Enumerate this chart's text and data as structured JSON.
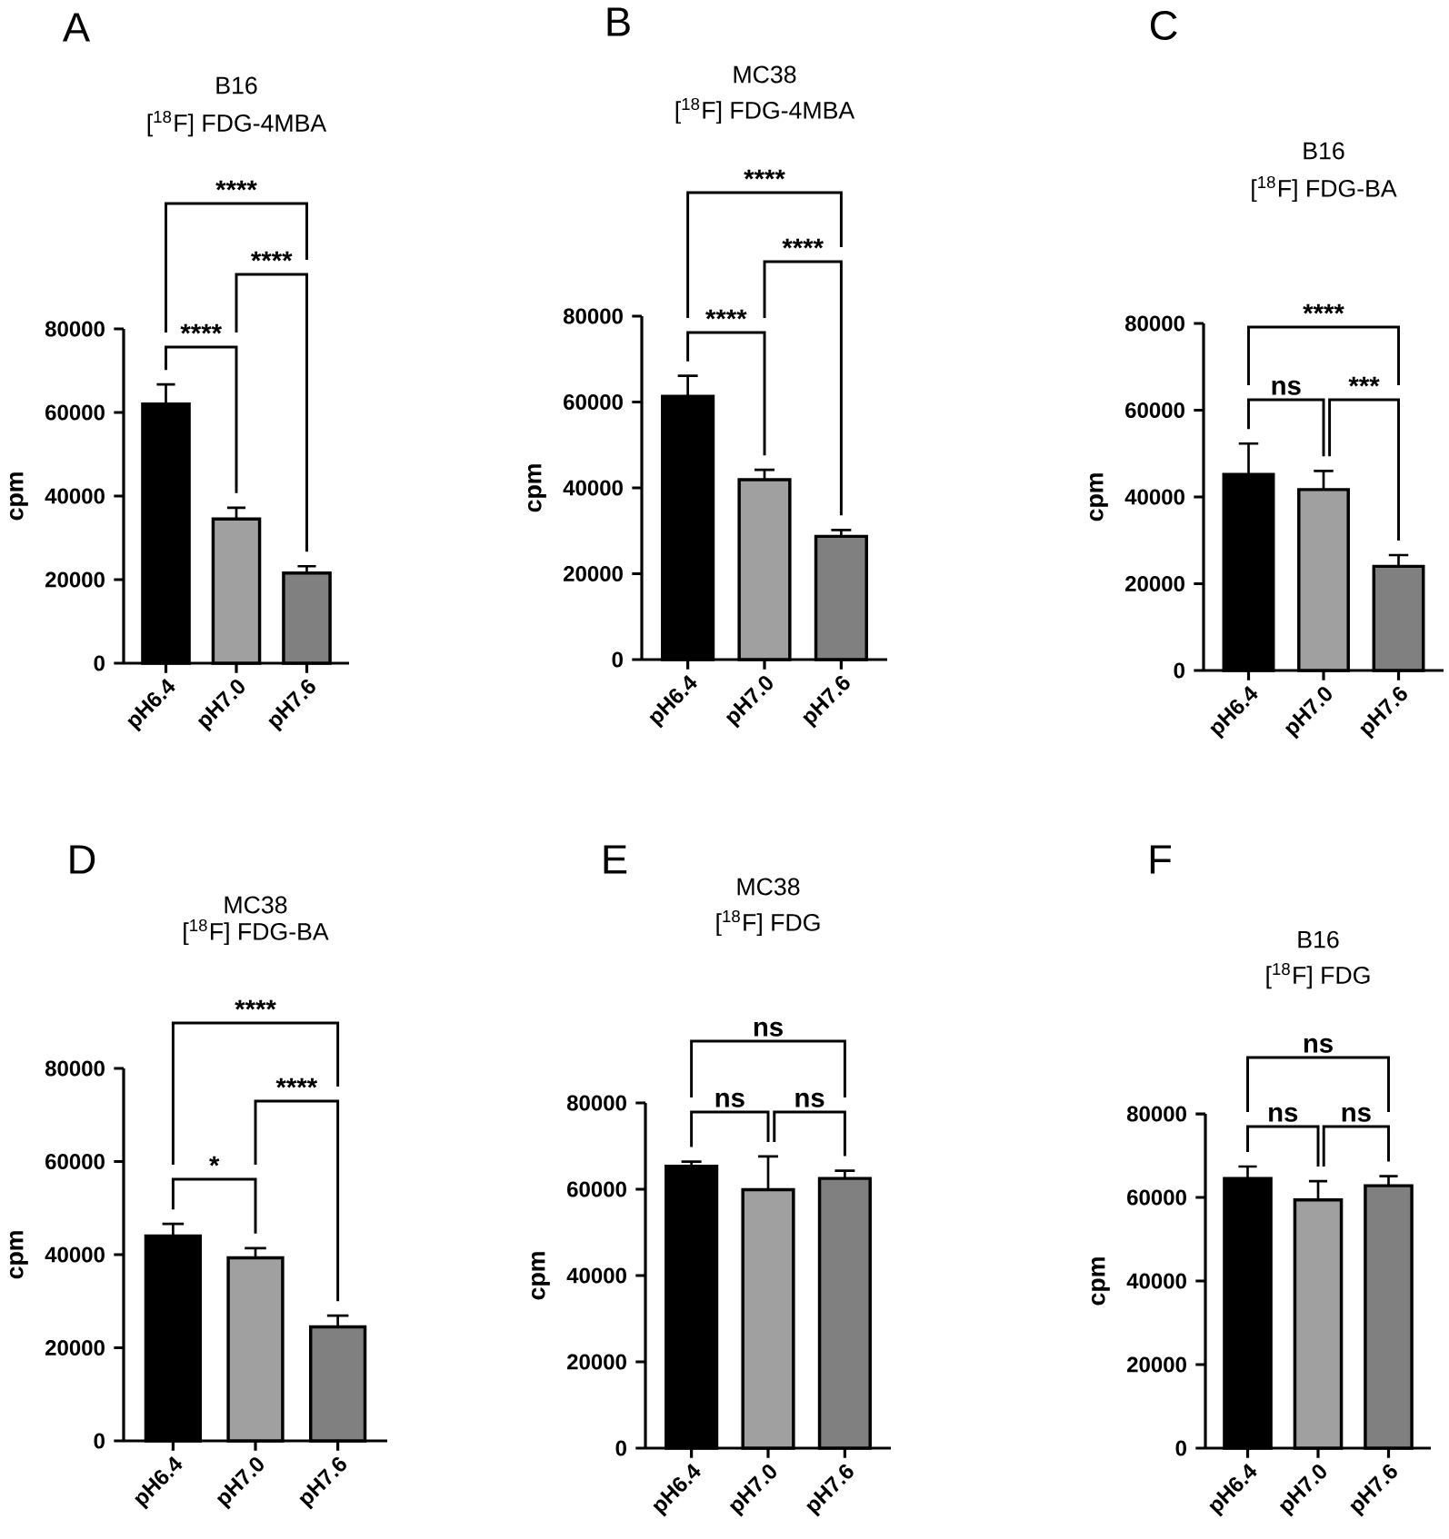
{
  "chart_data": [
    {
      "type": "bar",
      "title": "B16",
      "subtitle": "[$^{18}$F] FDG-4MBA",
      "ylabel": "cpm",
      "categories": [
        "pH6.4",
        "pH7.0",
        "pH7.6"
      ],
      "values": [
        62000,
        34500,
        21600
      ],
      "colors": [
        "#000000",
        "#a0a0a0",
        "#808080"
      ],
      "errors": [
        [
          62000,
          66700
        ],
        [
          34500,
          37200
        ],
        [
          21600,
          23200
        ]
      ],
      "ylim": [
        0,
        80000
      ],
      "yticks": [
        0,
        20000,
        40000,
        60000,
        80000
      ],
      "annotations": [
        "A",
        "****",
        "****",
        "****"
      ]
    },
    {
      "type": "bar",
      "title": "MC38",
      "subtitle": "[$^{18}$F]  FDG-4MBA",
      "ylabel": "cpm",
      "categories": [
        "pH6.4",
        "pH7.0",
        "pH7.6"
      ],
      "values": [
        61300,
        41900,
        28700
      ],
      "colors": [
        "#000000",
        "#a0a0a0",
        "#808080"
      ],
      "errors": [
        [
          61300,
          66100
        ],
        [
          41900,
          44200
        ],
        [
          28700,
          30200
        ]
      ],
      "ylim": [
        0,
        80000
      ],
      "yticks": [
        0,
        20000,
        40000,
        60000,
        80000
      ],
      "annotations": [
        "B",
        "****",
        "****",
        "****"
      ]
    },
    {
      "type": "bar",
      "title": "B16",
      "subtitle": "[$^{18}$F] FDG-BA",
      "ylabel": "cpm",
      "categories": [
        "pH6.4",
        "pH7.0",
        "pH7.6"
      ],
      "values": [
        45200,
        41700,
        24000
      ],
      "colors": [
        "#000000",
        "#a0a0a0",
        "#808080"
      ],
      "errors": [
        [
          45200,
          52300
        ],
        [
          41700,
          46000
        ],
        [
          24000,
          26600
        ]
      ],
      "ylim": [
        0,
        80000
      ],
      "yticks": [
        0,
        20000,
        40000,
        60000,
        80000
      ],
      "annotations": [
        "C",
        "ns",
        "***",
        "****"
      ]
    },
    {
      "type": "bar",
      "title": "MC38",
      "subtitle": "[$^{18}$F]  FDG-BA",
      "ylabel": "cpm",
      "categories": [
        "pH6.4",
        "pH7.0",
        "pH7.6"
      ],
      "values": [
        44000,
        39300,
        24500
      ],
      "colors": [
        "#000000",
        "#a0a0a0",
        "#808080"
      ],
      "errors": [
        [
          44000,
          46600
        ],
        [
          39300,
          41400
        ],
        [
          24500,
          26900
        ]
      ],
      "ylim": [
        0,
        80000
      ],
      "yticks": [
        0,
        20000,
        40000,
        60000,
        80000
      ],
      "annotations": [
        "D",
        "*",
        "****",
        "****"
      ]
    },
    {
      "type": "bar",
      "title": "MC38",
      "subtitle": "[$^{18}$F]  FDG",
      "ylabel": "cpm",
      "categories": [
        "pH6.4",
        "pH7.0",
        "pH7.6"
      ],
      "values": [
        65300,
        59900,
        62500
      ],
      "colors": [
        "#000000",
        "#a0a0a0",
        "#808080"
      ],
      "errors": [
        [
          65300,
          66400
        ],
        [
          59900,
          67600
        ],
        [
          62500,
          64300
        ]
      ],
      "ylim": [
        0,
        80000
      ],
      "yticks": [
        0,
        20000,
        40000,
        60000,
        80000
      ],
      "annotations": [
        "E",
        "ns",
        "ns",
        "ns"
      ]
    },
    {
      "type": "bar",
      "title": "B16",
      "subtitle": "[$^{18}$F] FDG",
      "ylabel": "cpm",
      "categories": [
        "pH6.4",
        "pH7.0",
        "pH7.6"
      ],
      "values": [
        64500,
        59400,
        62800
      ],
      "colors": [
        "#000000",
        "#a0a0a0",
        "#808080"
      ],
      "errors": [
        [
          64500,
          67400
        ],
        [
          59400,
          63900
        ],
        [
          62800,
          65100
        ]
      ],
      "ylim": [
        0,
        80000
      ],
      "yticks": [
        0,
        20000,
        40000,
        60000,
        80000
      ],
      "annotations": [
        "F",
        "ns",
        "ns",
        "ns"
      ]
    }
  ]
}
